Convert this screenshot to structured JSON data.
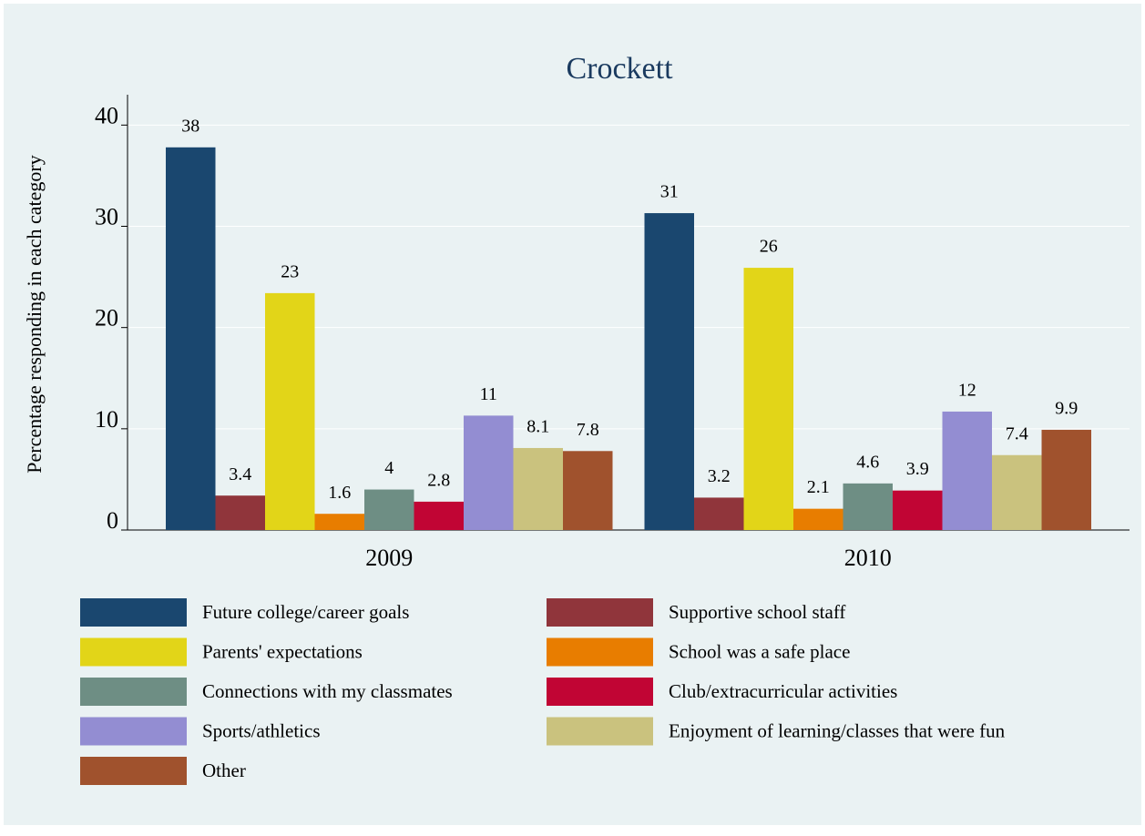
{
  "chart_data": {
    "type": "bar",
    "title": "Crockett",
    "y_label": "Percentage responding in each category",
    "categories": [
      "2009",
      "2010"
    ],
    "ylim": [
      0,
      43
    ],
    "yticks": [
      0,
      10,
      20,
      30,
      40
    ],
    "grid": true,
    "legend": "bottom",
    "series": [
      {
        "name": "Future college/career goals",
        "color": "#1a476f",
        "values": [
          37.8,
          31.3
        ],
        "value_labels": [
          "38",
          "31"
        ]
      },
      {
        "name": "Supportive school staff",
        "color": "#90353b",
        "values": [
          3.4,
          3.2
        ],
        "value_labels": [
          "3.4",
          "3.2"
        ]
      },
      {
        "name": "Parents' expectations",
        "color": "#e2d518",
        "values": [
          23.4,
          25.9
        ],
        "value_labels": [
          "23",
          "26"
        ]
      },
      {
        "name": "School was a safe place",
        "color": "#e87d00",
        "values": [
          1.6,
          2.1
        ],
        "value_labels": [
          "1.6",
          "2.1"
        ]
      },
      {
        "name": "Connections with my classmates",
        "color": "#6e8e84",
        "values": [
          4,
          4.6
        ],
        "value_labels": [
          "4",
          "4.6"
        ]
      },
      {
        "name": "Club/extracurricular activities",
        "color": "#c10534",
        "values": [
          2.8,
          3.9
        ],
        "value_labels": [
          "2.8",
          "3.9"
        ]
      },
      {
        "name": "Sports/athletics",
        "color": "#938dd2",
        "values": [
          11.3,
          11.7
        ],
        "value_labels": [
          "11",
          "12"
        ]
      },
      {
        "name": "Enjoyment of learning/classes that were fun",
        "color": "#cac27e",
        "values": [
          8.1,
          7.4
        ],
        "value_labels": [
          "8.1",
          "7.4"
        ]
      },
      {
        "name": "Other",
        "color": "#a0522d",
        "values": [
          7.8,
          9.9
        ],
        "value_labels": [
          "7.8",
          "9.9"
        ]
      }
    ]
  }
}
